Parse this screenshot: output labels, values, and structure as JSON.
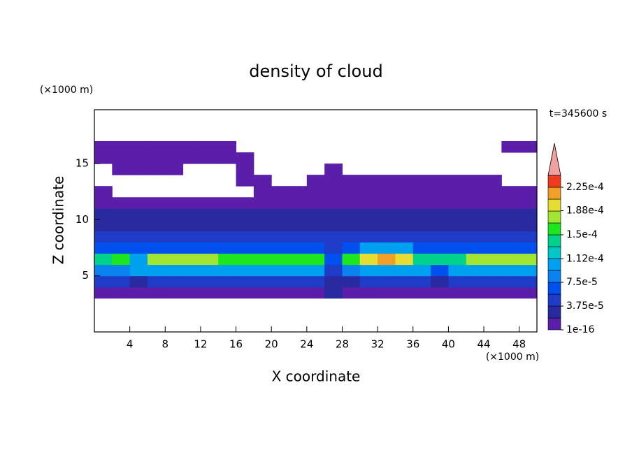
{
  "chart_data": {
    "type": "contour",
    "title": "density of cloud",
    "x_label": "X coordinate",
    "y_label": "Z coordinate",
    "x_unit": "(×1000 m)",
    "y_unit": "(×1000 m)",
    "time_label": "t=345600 s",
    "xlim": [
      0,
      50
    ],
    "xticks": [
      4,
      8,
      12,
      16,
      20,
      24,
      28,
      32,
      36,
      40,
      44,
      48
    ],
    "ylim": [
      0,
      19.8
    ],
    "yticks": [
      5,
      10,
      15
    ],
    "x": [
      1,
      3,
      5,
      7,
      9,
      11,
      13,
      15,
      17,
      19,
      21,
      23,
      25,
      27,
      29,
      31,
      33,
      35,
      37,
      39,
      41,
      43,
      45,
      47,
      49
    ],
    "z": [
      3.5,
      4.5,
      5.5,
      6.5,
      7.5,
      8.5,
      9.5,
      10.5,
      11.5,
      12.5,
      13.5,
      14.5,
      15.5,
      16.5
    ],
    "values": [
      [
        1e-05,
        1e-05,
        1e-05,
        1e-05,
        1e-05,
        1e-05,
        1e-05,
        1e-05,
        1e-05,
        1e-05,
        1e-05,
        1e-05,
        1e-05,
        3e-05,
        1e-05,
        1e-05,
        1e-05,
        1e-05,
        1e-05,
        1e-05,
        1e-05,
        1e-05,
        1e-05,
        1e-05,
        1e-05
      ],
      [
        5e-05,
        5e-05,
        3e-05,
        5e-05,
        5e-05,
        5e-05,
        5e-05,
        5e-05,
        5e-05,
        5e-05,
        5e-05,
        5e-05,
        5e-05,
        2e-05,
        2e-05,
        5e-05,
        5e-05,
        5e-05,
        5e-05,
        3e-05,
        5e-05,
        5e-05,
        5e-05,
        5e-05,
        5e-05
      ],
      [
        9e-05,
        9e-05,
        0.00011,
        0.00011,
        0.00011,
        0.00011,
        0.00011,
        0.00011,
        0.00011,
        0.00011,
        0.00011,
        0.00011,
        0.00011,
        4e-05,
        8e-05,
        0.00011,
        0.00011,
        0.00011,
        0.00011,
        7e-05,
        0.00011,
        0.00011,
        0.00011,
        0.00011,
        0.00011
      ],
      [
        0.00014,
        0.00016,
        0.00011,
        0.00017,
        0.00017,
        0.00017,
        0.00017,
        0.00016,
        0.00016,
        0.00016,
        0.00016,
        0.00016,
        0.00016,
        6e-05,
        0.00016,
        0.0002,
        0.00021,
        0.0002,
        0.00015,
        0.00015,
        0.00015,
        0.00017,
        0.00017,
        0.00017,
        0.00017
      ],
      [
        7e-05,
        7e-05,
        7e-05,
        7e-05,
        7e-05,
        7e-05,
        7e-05,
        7e-05,
        7e-05,
        7e-05,
        7e-05,
        7e-05,
        7e-05,
        5e-05,
        7e-05,
        0.00011,
        0.00011,
        0.00011,
        7e-05,
        7e-05,
        7e-05,
        7e-05,
        7e-05,
        7e-05,
        7e-05
      ],
      [
        5e-05,
        5e-05,
        5e-05,
        5e-05,
        5e-05,
        5e-05,
        5e-05,
        5e-05,
        5e-05,
        5e-05,
        5e-05,
        5e-05,
        5e-05,
        5e-05,
        5e-05,
        5e-05,
        5e-05,
        5e-05,
        5e-05,
        5e-05,
        5e-05,
        5e-05,
        5e-05,
        5e-05,
        5e-05
      ],
      [
        3.5e-05,
        3.5e-05,
        3.5e-05,
        3.5e-05,
        3.5e-05,
        3.5e-05,
        3.5e-05,
        3.5e-05,
        3.5e-05,
        3.5e-05,
        3.5e-05,
        3.5e-05,
        3.5e-05,
        3.5e-05,
        3.5e-05,
        3.5e-05,
        3.5e-05,
        3.5e-05,
        3.5e-05,
        3.5e-05,
        3.5e-05,
        3.5e-05,
        3.5e-05,
        3.5e-05,
        3.5e-05
      ],
      [
        2.2e-05,
        2.2e-05,
        2.2e-05,
        2.2e-05,
        2.2e-05,
        2.2e-05,
        2.2e-05,
        2.2e-05,
        2.2e-05,
        2.2e-05,
        2.2e-05,
        2.2e-05,
        2.2e-05,
        2.2e-05,
        2.2e-05,
        2.2e-05,
        2.2e-05,
        2.2e-05,
        2.2e-05,
        2.2e-05,
        2.2e-05,
        2.2e-05,
        2.2e-05,
        2.2e-05,
        2.2e-05
      ],
      [
        1e-05,
        1.6e-05,
        1.6e-05,
        1.6e-05,
        1.6e-05,
        1.6e-05,
        1.6e-05,
        1.6e-05,
        1.6e-05,
        1.6e-05,
        1.6e-05,
        1.6e-05,
        1.6e-05,
        1.6e-05,
        1.6e-05,
        1.6e-05,
        1.6e-05,
        1.6e-05,
        1.6e-05,
        1.6e-05,
        1.6e-05,
        1.6e-05,
        1.6e-05,
        1.6e-05,
        1.6e-05
      ],
      [
        8e-06,
        null,
        null,
        null,
        null,
        null,
        null,
        null,
        null,
        8e-06,
        8e-06,
        8e-06,
        8e-06,
        8e-06,
        8e-06,
        8e-06,
        8e-06,
        8e-06,
        8e-06,
        8e-06,
        8e-06,
        8e-06,
        8e-06,
        8e-06,
        8e-06
      ],
      [
        null,
        null,
        null,
        null,
        null,
        null,
        null,
        null,
        6e-06,
        6e-06,
        null,
        null,
        6e-06,
        6e-06,
        6e-06,
        6e-06,
        6e-06,
        6e-06,
        6e-06,
        6e-06,
        6e-06,
        6e-06,
        6e-06,
        null,
        null
      ],
      [
        null,
        5e-06,
        5e-06,
        5e-06,
        5e-06,
        null,
        null,
        null,
        5e-06,
        null,
        null,
        null,
        null,
        4e-06,
        null,
        null,
        null,
        null,
        null,
        null,
        null,
        null,
        null,
        null,
        null
      ],
      [
        4e-06,
        4e-06,
        4e-06,
        4e-06,
        4e-06,
        4e-06,
        4e-06,
        4e-06,
        4e-06,
        null,
        null,
        null,
        null,
        null,
        null,
        null,
        null,
        null,
        null,
        null,
        null,
        null,
        null,
        null,
        null
      ],
      [
        3e-06,
        3e-06,
        3e-06,
        3e-06,
        3e-06,
        3e-06,
        3e-06,
        3e-06,
        null,
        null,
        null,
        null,
        null,
        null,
        null,
        null,
        null,
        null,
        null,
        null,
        null,
        null,
        null,
        3e-06,
        3e-06
      ]
    ],
    "clim": [
      1e-16,
      0.00024375
    ],
    "colors": [
      "#5a1eaa",
      "#2a2aa0",
      "#1e3cc8",
      "#0050f0",
      "#0a82f0",
      "#00a0f0",
      "#00c8c8",
      "#00d28c",
      "#1ee61e",
      "#a0e632",
      "#e6dc32",
      "#f0a028",
      "#f03c1e"
    ],
    "over_color": "#f0a0a0",
    "cticks": [
      {
        "value": 1e-16,
        "label": "1e-16"
      },
      {
        "value": 3.75e-05,
        "label": "3.75e-5"
      },
      {
        "value": 7.5e-05,
        "label": "7.5e-5"
      },
      {
        "value": 0.000112,
        "label": "1.12e-4"
      },
      {
        "value": 0.00015,
        "label": "1.5e-4"
      },
      {
        "value": 0.000188,
        "label": "1.88e-4"
      },
      {
        "value": 0.000225,
        "label": "2.25e-4"
      }
    ]
  }
}
